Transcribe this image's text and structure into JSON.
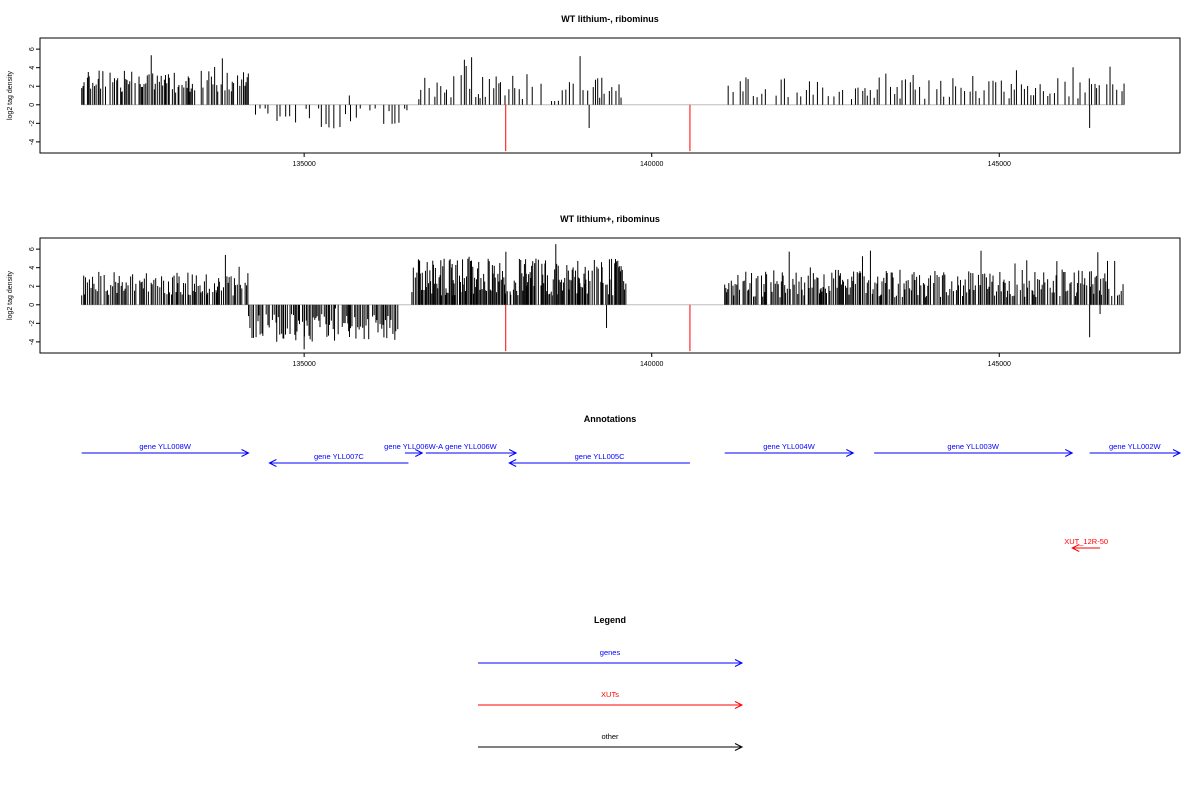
{
  "colors": {
    "signal": "#000000",
    "xut": "#ff0000",
    "gene": "#0000ff",
    "baseline": "#bebebe",
    "frame": "#000000",
    "background": "#ffffff"
  },
  "chart_data": [
    {
      "type": "bar",
      "title": "WT lithium-, ribominus",
      "ylabel": "log2 tag density",
      "xlim": [
        131200,
        147600
      ],
      "ylim": [
        -5.2,
        7.2
      ],
      "xticks": [
        135000,
        140000,
        145000
      ],
      "xtick_labels": [
        "135000",
        "140000",
        "145000"
      ],
      "yticks": [
        -4,
        -2,
        0,
        2,
        4,
        6
      ],
      "ytick_labels": [
        "-4",
        "-2",
        "0",
        "2",
        "4",
        "6"
      ],
      "grid": false,
      "regions": [
        {
          "start": 131800,
          "end": 134250,
          "base": 2.5,
          "amp": 1.2,
          "step": 22,
          "sign": 1
        },
        {
          "start": 134300,
          "end": 136500,
          "base": -1.5,
          "amp": 1.3,
          "step": 60,
          "sign": -1
        },
        {
          "start": 136650,
          "end": 139600,
          "base": 1.8,
          "amp": 1.5,
          "step": 45,
          "sign": 1
        },
        {
          "start": 141100,
          "end": 146800,
          "base": 1.8,
          "amp": 1.2,
          "step": 55,
          "sign": 1
        }
      ],
      "highlights": [
        {
          "x": 137900,
          "y": -5.0
        },
        {
          "x": 140550,
          "y": -5.0
        }
      ],
      "extras": [
        {
          "x": 135650,
          "y": 1.0
        },
        {
          "x": 139100,
          "y": -2.5
        },
        {
          "x": 146300,
          "y": -2.5
        },
        {
          "x": 146400,
          "y": 1.8
        }
      ]
    },
    {
      "type": "bar",
      "title": "WT lithium+, ribominus",
      "ylabel": "log2 tag density",
      "xlim": [
        131200,
        147600
      ],
      "ylim": [
        -5.2,
        7.2
      ],
      "xticks": [
        135000,
        140000,
        145000
      ],
      "xtick_labels": [
        "135000",
        "140000",
        "145000"
      ],
      "yticks": [
        -4,
        -2,
        0,
        2,
        4,
        6
      ],
      "ytick_labels": [
        "-4",
        "-2",
        "0",
        "2",
        "4",
        "6"
      ],
      "grid": false,
      "regions": [
        {
          "start": 131800,
          "end": 134200,
          "base": 2.3,
          "amp": 1.3,
          "step": 20,
          "sign": 1
        },
        {
          "start": 134200,
          "end": 136350,
          "base": -2.5,
          "amp": 1.5,
          "step": 20,
          "sign": -1
        },
        {
          "start": 136550,
          "end": 139650,
          "base": 3.0,
          "amp": 2.0,
          "step": 15,
          "sign": 1
        },
        {
          "start": 141050,
          "end": 146800,
          "base": 2.3,
          "amp": 1.5,
          "step": 20,
          "sign": 1
        }
      ],
      "highlights": [
        {
          "x": 137900,
          "y": -5.0
        },
        {
          "x": 140550,
          "y": -5.0
        }
      ],
      "extras": [
        {
          "x": 139350,
          "y": -2.5
        },
        {
          "x": 146300,
          "y": -3.5
        },
        {
          "x": 146450,
          "y": -1.0
        },
        {
          "x": 135000,
          "y": -4.8
        }
      ]
    }
  ],
  "annotations": {
    "title": "Annotations",
    "features": [
      {
        "label": "gene YLL008W",
        "start": 131800,
        "end": 134200,
        "strand": "+",
        "kind": "gene",
        "row": 0
      },
      {
        "label": "gene YLL007C",
        "start": 134500,
        "end": 136500,
        "strand": "-",
        "kind": "gene",
        "row": 1
      },
      {
        "label": "gene YLL006W-A",
        "start": 136450,
        "end": 136700,
        "strand": "+",
        "kind": "gene",
        "row": 0
      },
      {
        "label": "gene YLL006W",
        "start": 136750,
        "end": 138050,
        "strand": "+",
        "kind": "gene",
        "row": 0
      },
      {
        "label": "gene YLL005C",
        "start": 137950,
        "end": 140550,
        "strand": "-",
        "kind": "gene",
        "row": 1
      },
      {
        "label": "gene YLL004W",
        "start": 141050,
        "end": 142900,
        "strand": "+",
        "kind": "gene",
        "row": 0
      },
      {
        "label": "gene YLL003W",
        "start": 143200,
        "end": 146050,
        "strand": "+",
        "kind": "gene",
        "row": 0
      },
      {
        "label": "gene YLL002W",
        "start": 146300,
        "end": 147600,
        "strand": "+",
        "kind": "gene",
        "row": 0
      },
      {
        "label": "XUT_12R-50",
        "start": 146050,
        "end": 146450,
        "strand": "-",
        "kind": "xut",
        "row": 2
      }
    ]
  },
  "legend": {
    "title": "Legend",
    "items": [
      {
        "label": "genes",
        "kind": "gene"
      },
      {
        "label": "XUTs",
        "kind": "xut"
      },
      {
        "label": "other",
        "kind": "other"
      }
    ]
  }
}
